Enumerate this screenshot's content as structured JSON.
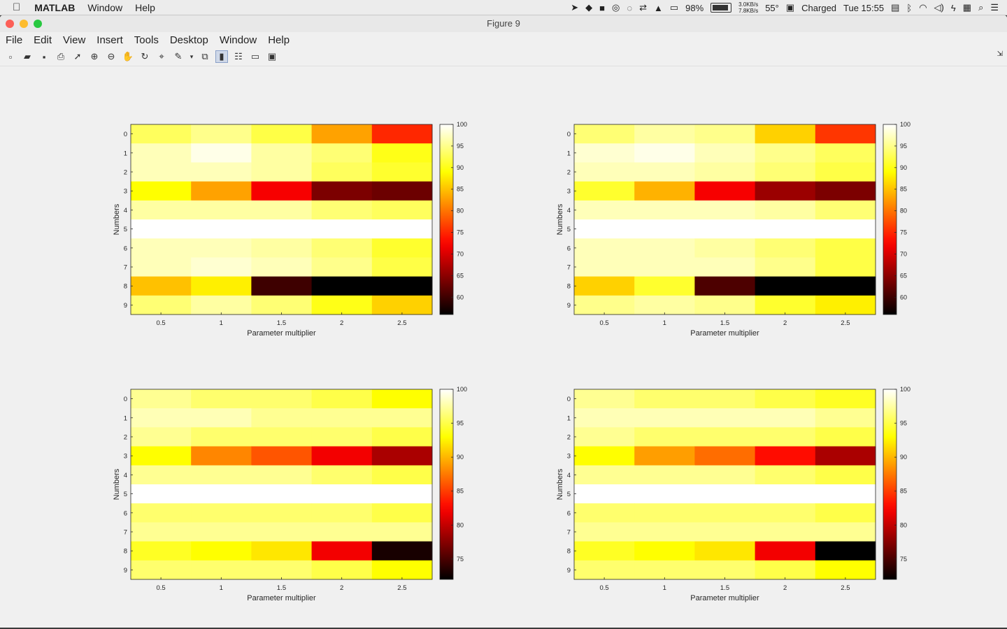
{
  "menubar": {
    "app_name": "MATLAB",
    "items": [
      "Window",
      "Help"
    ],
    "status": {
      "net_up": "3.0KB/s",
      "net_down": "7.8KB/s",
      "battery_pct": "98%",
      "temperature": "55°",
      "charge_status": "Charged",
      "clock": "Tue 15:55"
    }
  },
  "window": {
    "title": "Figure 9",
    "menu": [
      "File",
      "Edit",
      "View",
      "Insert",
      "Tools",
      "Desktop",
      "Window",
      "Help"
    ],
    "toolbar_icons": [
      "new-figure-icon",
      "open-file-icon",
      "save-icon",
      "print-icon",
      "select-arrow-icon",
      "zoom-in-icon",
      "zoom-out-icon",
      "pan-hand-icon",
      "rotate-3d-icon",
      "data-cursor-icon",
      "brush-icon",
      "brush-dropdown-icon",
      "link-plot-icon",
      "colorbar-icon",
      "legend-icon",
      "hide-plot-tools-icon",
      "show-plot-tools-icon"
    ]
  },
  "chart_data": [
    {
      "type": "heatmap",
      "xlabel": "Parameter multiplier",
      "ylabel": "Numbers",
      "x": [
        0.5,
        1,
        1.5,
        2,
        2.5
      ],
      "y": [
        0,
        1,
        2,
        3,
        4,
        5,
        6,
        7,
        8,
        9
      ],
      "colormap": "hot",
      "clim": [
        56,
        100
      ],
      "colorbar_ticks": [
        60,
        65,
        70,
        75,
        80,
        85,
        90,
        95,
        100
      ],
      "z": [
        [
          93,
          95,
          92,
          83,
          75
        ],
        [
          97,
          99,
          96,
          94,
          90
        ],
        [
          97,
          97,
          96,
          93,
          91
        ],
        [
          89,
          83,
          72,
          64,
          63
        ],
        [
          96,
          96,
          96,
          94,
          93
        ],
        [
          100,
          100,
          100,
          100,
          100
        ],
        [
          97,
          97,
          96,
          94,
          91
        ],
        [
          97,
          98,
          97,
          95,
          92
        ],
        [
          85,
          88,
          60,
          56,
          56
        ],
        [
          94,
          96,
          94,
          90,
          86
        ]
      ]
    },
    {
      "type": "heatmap",
      "xlabel": "Parameter multiplier",
      "ylabel": "Numbers",
      "x": [
        0.5,
        1,
        1.5,
        2,
        2.5
      ],
      "y": [
        0,
        1,
        2,
        3,
        4,
        5,
        6,
        7,
        8,
        9
      ],
      "colormap": "hot",
      "clim": [
        56,
        100
      ],
      "colorbar_ticks": [
        60,
        65,
        70,
        75,
        80,
        85,
        90,
        95,
        100
      ],
      "z": [
        [
          94,
          96,
          95,
          86,
          76
        ],
        [
          98,
          99,
          97,
          95,
          93
        ],
        [
          97,
          97,
          96,
          94,
          92
        ],
        [
          91,
          84,
          72,
          66,
          64
        ],
        [
          97,
          97,
          97,
          96,
          94
        ],
        [
          100,
          100,
          100,
          100,
          100
        ],
        [
          97,
          97,
          96,
          94,
          92
        ],
        [
          97,
          97,
          97,
          95,
          92
        ],
        [
          86,
          91,
          61,
          56,
          56
        ],
        [
          95,
          96,
          95,
          91,
          88
        ]
      ]
    },
    {
      "type": "heatmap",
      "xlabel": "Parameter multiplier",
      "ylabel": "Numbers",
      "x": [
        0.5,
        1,
        1.5,
        2,
        2.5
      ],
      "y": [
        0,
        1,
        2,
        3,
        4,
        5,
        6,
        7,
        8,
        9
      ],
      "colormap": "hot",
      "clim": [
        72,
        100
      ],
      "colorbar_ticks": [
        75,
        80,
        85,
        90,
        95,
        100
      ],
      "z": [
        [
          97,
          96,
          96,
          95,
          93
        ],
        [
          98,
          98,
          97,
          97,
          97
        ],
        [
          97,
          96,
          96,
          96,
          95
        ],
        [
          93,
          88,
          86,
          82,
          79
        ],
        [
          97,
          97,
          97,
          96,
          95
        ],
        [
          100,
          100,
          100,
          100,
          100
        ],
        [
          96,
          96,
          96,
          96,
          95
        ],
        [
          97,
          97,
          97,
          97,
          97
        ],
        [
          94,
          93,
          92,
          82,
          73
        ],
        [
          96,
          96,
          96,
          95,
          93
        ]
      ]
    },
    {
      "type": "heatmap",
      "xlabel": "Parameter multiplier",
      "ylabel": "Numbers",
      "x": [
        0.5,
        1,
        1.5,
        2,
        2.5
      ],
      "y": [
        0,
        1,
        2,
        3,
        4,
        5,
        6,
        7,
        8,
        9
      ],
      "colormap": "hot",
      "clim": [
        72,
        100
      ],
      "colorbar_ticks": [
        75,
        80,
        85,
        90,
        95,
        100
      ],
      "z": [
        [
          97,
          96,
          96,
          95,
          94
        ],
        [
          98,
          98,
          98,
          98,
          97
        ],
        [
          97,
          96,
          96,
          96,
          95
        ],
        [
          93,
          89,
          87,
          83,
          79
        ],
        [
          97,
          97,
          97,
          96,
          95
        ],
        [
          100,
          100,
          100,
          100,
          100
        ],
        [
          96,
          96,
          96,
          96,
          95
        ],
        [
          97,
          97,
          97,
          97,
          97
        ],
        [
          94,
          93,
          92,
          82,
          72
        ],
        [
          96,
          96,
          96,
          95,
          93
        ]
      ]
    }
  ]
}
